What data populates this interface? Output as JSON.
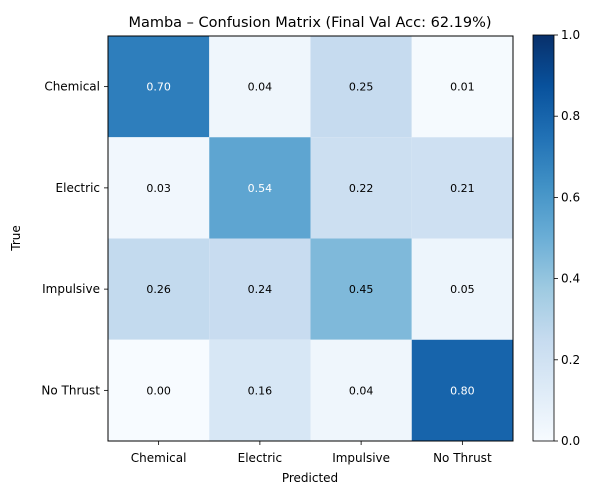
{
  "chart_data": {
    "type": "heatmap",
    "title": "Mamba – Confusion Matrix (Final Val Acc: 62.19%)",
    "xlabel": "Predicted",
    "ylabel": "True",
    "x_categories": [
      "Chemical",
      "Electric",
      "Impulsive",
      "No Thrust"
    ],
    "y_categories": [
      "Chemical",
      "Electric",
      "Impulsive",
      "No Thrust"
    ],
    "values": [
      [
        0.7,
        0.04,
        0.25,
        0.01
      ],
      [
        0.03,
        0.54,
        0.22,
        0.21
      ],
      [
        0.26,
        0.24,
        0.45,
        0.05
      ],
      [
        0.0,
        0.16,
        0.04,
        0.8
      ]
    ],
    "value_labels": [
      [
        "0.70",
        "0.04",
        "0.25",
        "0.01"
      ],
      [
        "0.03",
        "0.54",
        "0.22",
        "0.21"
      ],
      [
        "0.26",
        "0.24",
        "0.45",
        "0.05"
      ],
      [
        "0.00",
        "0.16",
        "0.04",
        "0.80"
      ]
    ],
    "colormap": "Blues",
    "color_range": [
      0.0,
      1.0
    ],
    "colorbar_ticks": [
      "0.0",
      "0.2",
      "0.4",
      "0.6",
      "0.8",
      "1.0"
    ],
    "colorbar_tick_values": [
      0.0,
      0.2,
      0.4,
      0.6,
      0.8,
      1.0
    ],
    "grid": false
  }
}
